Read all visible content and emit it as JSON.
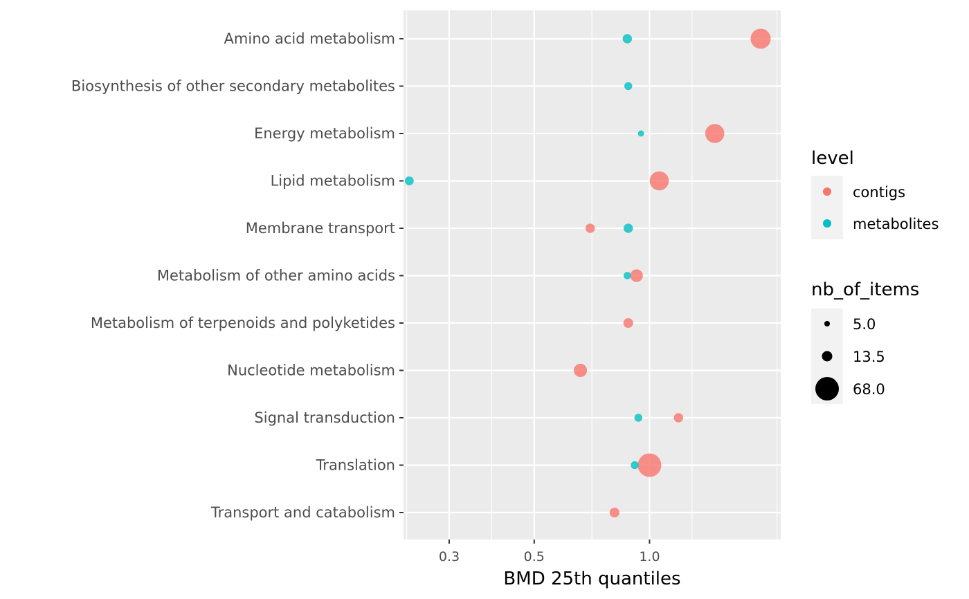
{
  "chart_data": {
    "type": "scatter",
    "xlabel": "BMD 25th quantiles",
    "ylabel": "",
    "x_scale": "log10",
    "xlim": [
      0.228,
      2.2
    ],
    "x_ticks": [
      0.3,
      0.5,
      1.0
    ],
    "x_tick_labels": [
      "0.3",
      "0.5",
      "1.0"
    ],
    "categories": [
      "Amino acid metabolism",
      "Biosynthesis of other secondary metabolites",
      "Energy metabolism",
      "Lipid metabolism",
      "Membrane transport",
      "Metabolism of other amino acids",
      "Metabolism of terpenoids and polyketides",
      "Nucleotide metabolism",
      "Signal transduction",
      "Translation",
      "Transport and catabolism"
    ],
    "color_legend": {
      "title": "level",
      "entries": [
        {
          "label": "contigs",
          "color": "#F8766D"
        },
        {
          "label": "metabolites",
          "color": "#00BFC4"
        }
      ]
    },
    "size_legend": {
      "title": "nb_of_items",
      "entries": [
        {
          "label": "5.0",
          "value": 5.0
        },
        {
          "label": "13.5",
          "value": 13.5
        },
        {
          "label": "68.0",
          "value": 68.0
        }
      ]
    },
    "legend_position": "right",
    "grid": true,
    "series": [
      {
        "name": "contigs",
        "color": "#F8766D",
        "points": [
          {
            "category": "Amino acid metabolism",
            "x": 1.95,
            "size": 50
          },
          {
            "category": "Energy metabolism",
            "x": 1.48,
            "size": 45
          },
          {
            "category": "Lipid metabolism",
            "x": 1.06,
            "size": 45
          },
          {
            "category": "Membrane transport",
            "x": 0.7,
            "size": 11
          },
          {
            "category": "Metabolism of other amino acids",
            "x": 0.925,
            "size": 20
          },
          {
            "category": "Metabolism of terpenoids and polyketides",
            "x": 0.88,
            "size": 12
          },
          {
            "category": "Nucleotide metabolism",
            "x": 0.66,
            "size": 22
          },
          {
            "category": "Signal transduction",
            "x": 1.19,
            "size": 11
          },
          {
            "category": "Translation",
            "x": 1.0,
            "size": 68
          },
          {
            "category": "Transport and catabolism",
            "x": 0.81,
            "size": 12
          }
        ]
      },
      {
        "name": "metabolites",
        "color": "#00BFC4",
        "points": [
          {
            "category": "Amino acid metabolism",
            "x": 0.875,
            "size": 11
          },
          {
            "category": "Biosynthesis of other secondary metabolites",
            "x": 0.88,
            "size": 8
          },
          {
            "category": "Energy metabolism",
            "x": 0.95,
            "size": 5
          },
          {
            "category": "Lipid metabolism",
            "x": 0.236,
            "size": 10
          },
          {
            "category": "Membrane transport",
            "x": 0.88,
            "size": 11
          },
          {
            "category": "Metabolism of other amino acids",
            "x": 0.875,
            "size": 7
          },
          {
            "category": "Signal transduction",
            "x": 0.935,
            "size": 8
          },
          {
            "category": "Translation",
            "x": 0.915,
            "size": 8
          }
        ]
      }
    ]
  }
}
